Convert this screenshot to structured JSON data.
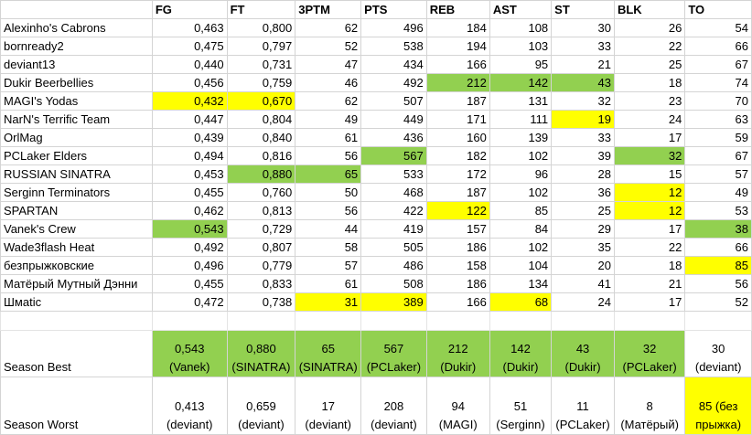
{
  "headers": [
    "",
    "FG",
    "FT",
    "3PTM",
    "PTS",
    "REB",
    "AST",
    "ST",
    "BLK",
    "TO"
  ],
  "rows": [
    {
      "team": "Alexinho's Cabrons",
      "stats": [
        "0,463",
        "0,800",
        "62",
        "496",
        "184",
        "108",
        "30",
        "26",
        "54"
      ],
      "hl": [
        "",
        "",
        "",
        "",
        "",
        "",
        "",
        "",
        ""
      ]
    },
    {
      "team": "bornready2",
      "stats": [
        "0,475",
        "0,797",
        "52",
        "538",
        "194",
        "103",
        "33",
        "22",
        "66"
      ],
      "hl": [
        "",
        "",
        "",
        "",
        "",
        "",
        "",
        "",
        ""
      ]
    },
    {
      "team": "deviant13",
      "stats": [
        "0,440",
        "0,731",
        "47",
        "434",
        "166",
        "95",
        "21",
        "25",
        "67"
      ],
      "hl": [
        "",
        "",
        "",
        "",
        "",
        "",
        "",
        "",
        ""
      ]
    },
    {
      "team": "Dukir Beerbellies",
      "stats": [
        "0,456",
        "0,759",
        "46",
        "492",
        "212",
        "142",
        "43",
        "18",
        "74"
      ],
      "hl": [
        "",
        "",
        "",
        "",
        "g",
        "g",
        "g",
        "",
        ""
      ]
    },
    {
      "team": "MAGI's Yodas",
      "stats": [
        "0,432",
        "0,670",
        "62",
        "507",
        "187",
        "131",
        "32",
        "23",
        "70"
      ],
      "hl": [
        "y",
        "y",
        "",
        "",
        "",
        "",
        "",
        "",
        ""
      ]
    },
    {
      "team": "NarN's Terrific Team",
      "stats": [
        "0,447",
        "0,804",
        "49",
        "449",
        "171",
        "111",
        "19",
        "24",
        "63"
      ],
      "hl": [
        "",
        "",
        "",
        "",
        "",
        "",
        "y",
        "",
        ""
      ]
    },
    {
      "team": "OrlMag",
      "stats": [
        "0,439",
        "0,840",
        "61",
        "436",
        "160",
        "139",
        "33",
        "17",
        "59"
      ],
      "hl": [
        "",
        "",
        "",
        "",
        "",
        "",
        "",
        "",
        ""
      ]
    },
    {
      "team": "PCLaker Elders",
      "stats": [
        "0,494",
        "0,816",
        "56",
        "567",
        "182",
        "102",
        "39",
        "32",
        "67"
      ],
      "hl": [
        "",
        "",
        "",
        "g",
        "",
        "",
        "",
        "g",
        ""
      ]
    },
    {
      "team": "RUSSIAN SINATRA",
      "stats": [
        "0,453",
        "0,880",
        "65",
        "533",
        "172",
        "96",
        "28",
        "15",
        "57"
      ],
      "hl": [
        "",
        "g",
        "g",
        "",
        "",
        "",
        "",
        "",
        ""
      ]
    },
    {
      "team": "Serginn Terminators",
      "stats": [
        "0,455",
        "0,760",
        "50",
        "468",
        "187",
        "102",
        "36",
        "12",
        "49"
      ],
      "hl": [
        "",
        "",
        "",
        "",
        "",
        "",
        "",
        "y",
        ""
      ]
    },
    {
      "team": "SPARTAN",
      "stats": [
        "0,462",
        "0,813",
        "56",
        "422",
        "122",
        "85",
        "25",
        "12",
        "53"
      ],
      "hl": [
        "",
        "",
        "",
        "",
        "y",
        "",
        "",
        "y",
        ""
      ]
    },
    {
      "team": "Vanek's Crew",
      "stats": [
        "0,543",
        "0,729",
        "44",
        "419",
        "157",
        "84",
        "29",
        "17",
        "38"
      ],
      "hl": [
        "g",
        "",
        "",
        "",
        "",
        "",
        "",
        "",
        "g"
      ]
    },
    {
      "team": "Wade3flash Heat",
      "stats": [
        "0,492",
        "0,807",
        "58",
        "505",
        "186",
        "102",
        "35",
        "22",
        "66"
      ],
      "hl": [
        "",
        "",
        "",
        "",
        "",
        "",
        "",
        "",
        ""
      ]
    },
    {
      "team": "безпрыжковские",
      "stats": [
        "0,496",
        "0,779",
        "57",
        "486",
        "158",
        "104",
        "20",
        "18",
        "85"
      ],
      "hl": [
        "",
        "",
        "",
        "",
        "",
        "",
        "",
        "",
        "y"
      ]
    },
    {
      "team": "Матёрый Мутный Дэнни",
      "stats": [
        "0,455",
        "0,833",
        "61",
        "508",
        "186",
        "134",
        "41",
        "21",
        "56"
      ],
      "hl": [
        "",
        "",
        "",
        "",
        "",
        "",
        "",
        "",
        ""
      ]
    },
    {
      "team": "Шмаtic",
      "stats": [
        "0,472",
        "0,738",
        "31",
        "389",
        "166",
        "68",
        "24",
        "17",
        "52"
      ],
      "hl": [
        "",
        "",
        "y",
        "y",
        "",
        "y",
        "",
        "",
        ""
      ]
    }
  ],
  "season_best": {
    "label": "Season Best",
    "cells": [
      {
        "value": "0,543",
        "who": "(Vanek)",
        "hl": "g"
      },
      {
        "value": "0,880",
        "who": "(SINATRA)",
        "hl": "g"
      },
      {
        "value": "65",
        "who": "(SINATRA)",
        "hl": "g"
      },
      {
        "value": "567",
        "who": "(PCLaker)",
        "hl": "g"
      },
      {
        "value": "212",
        "who": "(Dukir)",
        "hl": "g"
      },
      {
        "value": "142",
        "who": "(Dukir)",
        "hl": "g"
      },
      {
        "value": "43",
        "who": "(Dukir)",
        "hl": "g"
      },
      {
        "value": "32",
        "who": "(PCLaker)",
        "hl": "g"
      },
      {
        "value": "30",
        "who": "(deviant)",
        "hl": ""
      }
    ]
  },
  "season_worst": {
    "label": "Season Worst",
    "cells": [
      {
        "value": "0,413",
        "who": "(deviant)",
        "hl": ""
      },
      {
        "value": "0,659",
        "who": "(deviant)",
        "hl": ""
      },
      {
        "value": "17",
        "who": "(deviant)",
        "hl": ""
      },
      {
        "value": "208",
        "who": "(deviant)",
        "hl": ""
      },
      {
        "value": "94",
        "who": "(MAGI)",
        "hl": ""
      },
      {
        "value": "51",
        "who": "(Serginn)",
        "hl": ""
      },
      {
        "value": "11",
        "who": "(PCLaker)",
        "hl": ""
      },
      {
        "value": "8",
        "who": "(Матёрый)",
        "hl": ""
      },
      {
        "value": "85 (без",
        "who": "прыжка)",
        "hl": "y"
      }
    ]
  }
}
